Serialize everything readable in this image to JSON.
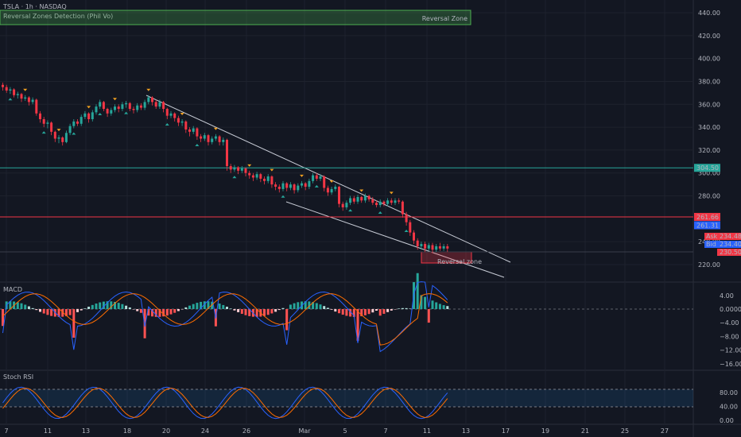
{
  "header": {
    "symbol_line": "TSLA · 1h · NASDAQ",
    "indicator_line": "Reversal Zones Detection (Phil Vo)"
  },
  "top_zone": {
    "label": "Reversal Zone"
  },
  "price_panel": {
    "y_ticks": [
      "440.00",
      "420.00",
      "400.00",
      "380.00",
      "360.00",
      "340.00",
      "320.00",
      "300.00",
      "280.00",
      "240.00",
      "220.00"
    ],
    "y_tick_values": [
      440,
      420,
      400,
      380,
      360,
      340,
      320,
      300,
      280,
      240,
      220
    ],
    "levels": [
      {
        "value": 304.5,
        "text": "304.50",
        "color": "#26a69a"
      },
      {
        "value": 261.66,
        "text": "261.66",
        "color": "#f23645"
      },
      {
        "value": 261.31,
        "text": "261.31",
        "color": "#2962ff"
      }
    ],
    "quote": {
      "ask_label": "Ask",
      "ask": "234.48",
      "bid_label": "Bid",
      "bid": "234.40",
      "last": "230.50"
    },
    "annotation": "Reversal zone"
  },
  "macd_panel": {
    "title": "MACD",
    "y_ticks": [
      "4.00",
      "0.0000",
      "−4.00",
      "−8.00",
      "−12.00",
      "−16.00"
    ],
    "y_tick_values": [
      4,
      0,
      -4,
      -8,
      -12,
      -16
    ]
  },
  "stoch_panel": {
    "title": "Stoch RSI",
    "y_ticks": [
      "80.00",
      "40.00",
      "0.00"
    ],
    "y_tick_values": [
      80,
      40,
      0
    ]
  },
  "x_axis": {
    "labels": [
      "7",
      "11",
      "13",
      "18",
      "20",
      "24",
      "26",
      "Mar",
      "5",
      "7",
      "11",
      "13",
      "17",
      "19",
      "21",
      "25",
      "27"
    ]
  },
  "colors": {
    "up": "#26a69a",
    "down": "#f23645",
    "bg": "#131722"
  },
  "chart_data": {
    "type": "candlestick",
    "candles": [
      [
        377,
        375,
        379,
        372
      ],
      [
        375,
        372,
        377,
        370
      ],
      [
        372,
        373,
        375,
        369
      ],
      [
        373,
        368,
        374,
        366
      ],
      [
        368,
        369,
        371,
        365
      ],
      [
        369,
        365,
        370,
        362
      ],
      [
        365,
        366,
        368,
        363
      ],
      [
        366,
        362,
        367,
        359
      ],
      [
        362,
        364,
        366,
        360
      ],
      [
        364,
        352,
        365,
        350
      ],
      [
        352,
        347,
        354,
        344
      ],
      [
        347,
        343,
        349,
        340
      ],
      [
        343,
        344,
        346,
        339
      ],
      [
        344,
        336,
        345,
        333
      ],
      [
        336,
        330,
        337,
        327
      ],
      [
        330,
        331,
        333,
        326
      ],
      [
        331,
        327,
        332,
        324
      ],
      [
        327,
        335,
        337,
        326
      ],
      [
        335,
        341,
        343,
        333
      ],
      [
        341,
        345,
        347,
        339
      ],
      [
        345,
        343,
        347,
        341
      ],
      [
        343,
        349,
        351,
        341
      ],
      [
        349,
        352,
        354,
        347
      ],
      [
        352,
        347,
        353,
        344
      ],
      [
        347,
        353,
        355,
        345
      ],
      [
        353,
        358,
        360,
        351
      ],
      [
        358,
        362,
        364,
        356
      ],
      [
        362,
        356,
        363,
        354
      ],
      [
        356,
        352,
        357,
        349
      ],
      [
        352,
        355,
        357,
        350
      ],
      [
        355,
        358,
        360,
        353
      ],
      [
        358,
        356,
        360,
        353
      ],
      [
        356,
        360,
        362,
        354
      ],
      [
        360,
        361,
        363,
        357
      ],
      [
        361,
        356,
        362,
        354
      ],
      [
        356,
        355,
        358,
        352
      ],
      [
        355,
        359,
        361,
        353
      ],
      [
        359,
        357,
        361,
        355
      ],
      [
        357,
        362,
        364,
        355
      ],
      [
        362,
        366,
        368,
        360
      ],
      [
        366,
        362,
        367,
        359
      ],
      [
        362,
        358,
        364,
        356
      ],
      [
        358,
        362,
        364,
        356
      ],
      [
        362,
        356,
        363,
        353
      ],
      [
        356,
        350,
        357,
        347
      ],
      [
        350,
        352,
        354,
        348
      ],
      [
        352,
        348,
        353,
        345
      ],
      [
        348,
        344,
        350,
        341
      ],
      [
        344,
        345,
        347,
        341
      ],
      [
        345,
        338,
        346,
        335
      ],
      [
        338,
        336,
        340,
        332
      ],
      [
        336,
        339,
        341,
        334
      ],
      [
        339,
        332,
        340,
        329
      ],
      [
        332,
        330,
        334,
        327
      ],
      [
        330,
        333,
        335,
        328
      ],
      [
        333,
        327,
        334,
        324
      ],
      [
        327,
        330,
        332,
        325
      ],
      [
        330,
        332,
        334,
        328
      ],
      [
        332,
        327,
        333,
        324
      ],
      [
        327,
        329,
        331,
        324
      ],
      [
        329,
        306,
        330,
        302
      ],
      [
        306,
        303,
        308,
        300
      ],
      [
        303,
        305,
        307,
        301
      ],
      [
        305,
        302,
        306,
        299
      ],
      [
        302,
        304,
        306,
        300
      ],
      [
        304,
        300,
        305,
        297
      ],
      [
        300,
        298,
        302,
        295
      ],
      [
        298,
        296,
        300,
        293
      ],
      [
        296,
        299,
        301,
        294
      ],
      [
        299,
        295,
        300,
        292
      ],
      [
        295,
        293,
        297,
        290
      ],
      [
        293,
        297,
        299,
        291
      ],
      [
        297,
        290,
        298,
        287
      ],
      [
        290,
        288,
        292,
        285
      ],
      [
        288,
        286,
        290,
        283
      ],
      [
        286,
        291,
        293,
        284
      ],
      [
        291,
        287,
        292,
        284
      ],
      [
        287,
        290,
        292,
        285
      ],
      [
        290,
        285,
        291,
        282
      ],
      [
        285,
        289,
        291,
        283
      ],
      [
        289,
        291,
        293,
        287
      ],
      [
        291,
        288,
        292,
        285
      ],
      [
        288,
        293,
        295,
        286
      ],
      [
        293,
        298,
        300,
        291
      ],
      [
        298,
        295,
        300,
        293
      ],
      [
        295,
        297,
        299,
        293
      ],
      [
        297,
        287,
        298,
        284
      ],
      [
        287,
        283,
        289,
        280
      ],
      [
        283,
        286,
        288,
        281
      ],
      [
        286,
        288,
        290,
        284
      ],
      [
        288,
        273,
        289,
        270
      ],
      [
        273,
        270,
        275,
        267
      ],
      [
        270,
        274,
        276,
        268
      ],
      [
        274,
        278,
        280,
        272
      ],
      [
        278,
        275,
        280,
        273
      ],
      [
        275,
        279,
        281,
        273
      ],
      [
        279,
        276,
        280,
        274
      ],
      [
        276,
        280,
        282,
        274
      ],
      [
        280,
        277,
        281,
        275
      ],
      [
        277,
        274,
        279,
        272
      ],
      [
        274,
        272,
        276,
        270
      ],
      [
        272,
        275,
        277,
        270
      ],
      [
        275,
        273,
        276,
        271
      ],
      [
        273,
        276,
        278,
        271
      ],
      [
        276,
        274,
        278,
        272
      ],
      [
        274,
        276,
        278,
        272
      ],
      [
        276,
        275,
        278,
        273
      ],
      [
        275,
        264,
        276,
        261
      ],
      [
        264,
        257,
        266,
        254
      ],
      [
        257,
        248,
        259,
        245
      ],
      [
        248,
        241,
        250,
        238
      ],
      [
        241,
        236,
        243,
        233
      ],
      [
        236,
        238,
        240,
        233
      ],
      [
        238,
        234,
        240,
        231
      ],
      [
        234,
        237,
        239,
        232
      ],
      [
        237,
        233,
        239,
        230
      ],
      [
        233,
        236,
        238,
        231
      ],
      [
        236,
        234,
        239,
        232
      ],
      [
        234,
        236,
        238,
        232
      ],
      [
        236,
        234,
        238,
        231
      ]
    ],
    "up_markers": [
      2,
      11,
      19,
      26,
      33,
      44,
      52,
      62,
      75,
      84,
      93,
      101,
      108
    ],
    "down_markers": [
      6,
      15,
      23,
      30,
      39,
      48,
      57,
      66,
      72,
      80,
      88,
      96,
      104
    ]
  }
}
